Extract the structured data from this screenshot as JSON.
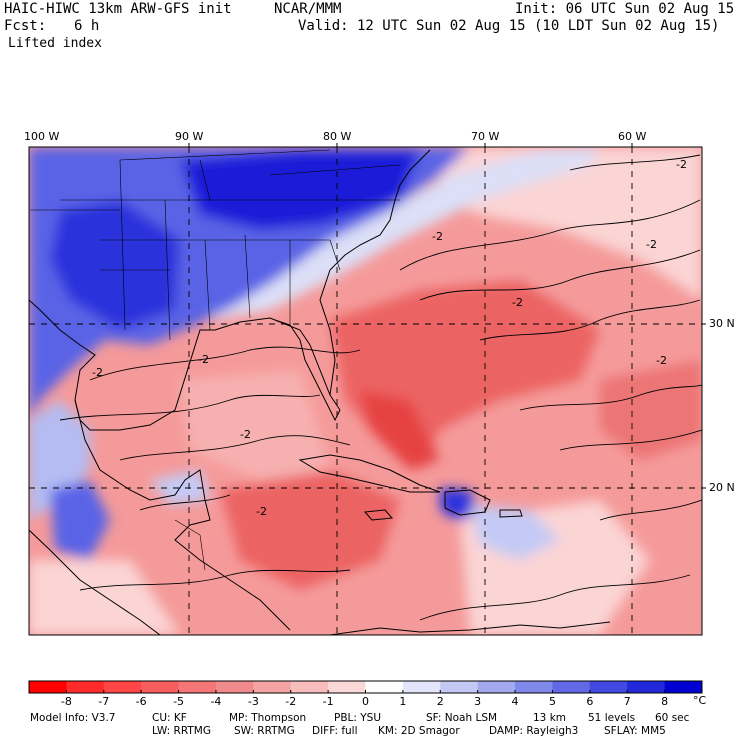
{
  "header": {
    "model_line": "HAIC-HIWC 13km ARW-GFS init",
    "org": "NCAR/MMM",
    "init": "Init: 06 UTC Sun 02 Aug 15",
    "fcst_label": "Fcst:",
    "fcst_value": "6 h",
    "valid": "Valid: 12 UTC Sun 02 Aug 15 (10 LDT Sun 02 Aug 15)",
    "field": "Lifted index"
  },
  "map": {
    "lon_labels": [
      "100 W",
      "90 W",
      "80 W",
      "70 W",
      "60 W"
    ],
    "lat_labels": [
      "30 N",
      "20 N"
    ],
    "contour_label": "-2",
    "colors": {
      "deep_blue": "#1a1ed8",
      "mid_blue": "#5a64e6",
      "light_blue": "#b4bcf2",
      "pale_pink": "#fbd4d4",
      "salmon": "#f59a9a",
      "red": "#ec6464",
      "deep_red": "#e64242"
    }
  },
  "colorbar": {
    "ticks": [
      "-8",
      "-7",
      "-6",
      "-5",
      "-4",
      "-3",
      "-2",
      "-1",
      "0",
      "1",
      "2",
      "3",
      "4",
      "5",
      "6",
      "7",
      "8"
    ],
    "unit": "°C",
    "colors": [
      "#ff0000",
      "#ff2b2b",
      "#ff4545",
      "#f95e5e",
      "#f47676",
      "#f18b8b",
      "#f4a3a3",
      "#f8bdbd",
      "#fbd8d8",
      "#ffffff",
      "#e4e4fb",
      "#c3c8f5",
      "#a3a9ef",
      "#8189ea",
      "#6169e5",
      "#4249e0",
      "#2229da",
      "#0000d2"
    ]
  },
  "footer": {
    "line1": [
      "Model Info: V3.7",
      "CU: KF",
      "MP: Thompson",
      "PBL: YSU",
      "SF: Noah LSM",
      "13 km",
      "51 levels",
      "60 sec"
    ],
    "line2": [
      "LW: RRTMG",
      "SW: RRTMG",
      "DIFF: full",
      "KM: 2D Smagor",
      "DAMP: Rayleigh3",
      "SFLAY: MM5"
    ]
  }
}
